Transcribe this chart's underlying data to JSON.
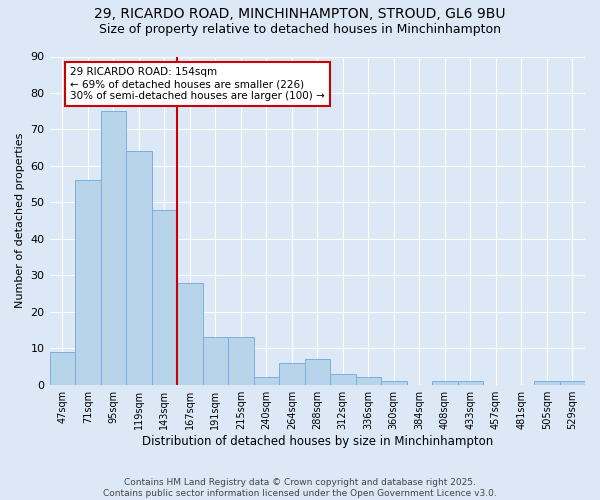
{
  "title_line1": "29, RICARDO ROAD, MINCHINHAMPTON, STROUD, GL6 9BU",
  "title_line2": "Size of property relative to detached houses in Minchinhampton",
  "xlabel": "Distribution of detached houses by size in Minchinhampton",
  "ylabel": "Number of detached properties",
  "categories": [
    "47sqm",
    "71sqm",
    "95sqm",
    "119sqm",
    "143sqm",
    "167sqm",
    "191sqm",
    "215sqm",
    "240sqm",
    "264sqm",
    "288sqm",
    "312sqm",
    "336sqm",
    "360sqm",
    "384sqm",
    "408sqm",
    "433sqm",
    "457sqm",
    "481sqm",
    "505sqm",
    "529sqm"
  ],
  "values": [
    9,
    56,
    75,
    64,
    48,
    28,
    13,
    13,
    2,
    6,
    7,
    3,
    2,
    1,
    0,
    1,
    1,
    0,
    0,
    1,
    1
  ],
  "bar_color": "#b8d4ea",
  "bar_edge_color": "#7aafe0",
  "property_line_x": 5,
  "property_line_color": "#cc0000",
  "annotation_text": "29 RICARDO ROAD: 154sqm\n← 69% of detached houses are smaller (226)\n30% of semi-detached houses are larger (100) →",
  "annotation_box_color": "#ffffff",
  "annotation_box_edge": "#cc0000",
  "ylim": [
    0,
    90
  ],
  "yticks": [
    0,
    10,
    20,
    30,
    40,
    50,
    60,
    70,
    80,
    90
  ],
  "bg_color": "#dce8f5",
  "footnote": "Contains HM Land Registry data © Crown copyright and database right 2025.\nContains public sector information licensed under the Open Government Licence v3.0.",
  "title_fontsize": 10,
  "subtitle_fontsize": 9,
  "annotation_fontsize": 7.5,
  "footnote_fontsize": 6.5,
  "ylabel_fontsize": 8,
  "xlabel_fontsize": 8.5
}
